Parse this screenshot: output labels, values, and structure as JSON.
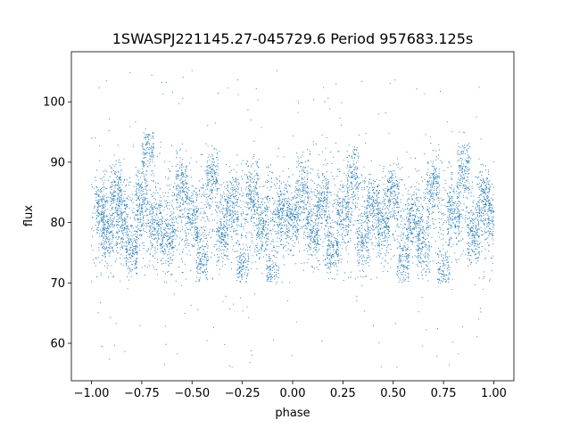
{
  "chart_data": {
    "type": "scatter",
    "title": "1SWASPJ221145.27-045729.6 Period 957683.125s",
    "xlabel": "phase",
    "ylabel": "flux",
    "xlim": [
      -1.1,
      1.1
    ],
    "ylim": [
      53.8,
      108.3
    ],
    "xticks": [
      -1.0,
      -0.75,
      -0.5,
      -0.25,
      0.0,
      0.25,
      0.5,
      0.75,
      1.0
    ],
    "xtick_labels": [
      "−1.00",
      "−0.75",
      "−0.50",
      "−0.25",
      "0.00",
      "0.25",
      "0.50",
      "0.75",
      "1.00"
    ],
    "yticks": [
      60,
      70,
      80,
      90,
      100
    ],
    "ytick_labels": [
      "60",
      "70",
      "80",
      "90",
      "100"
    ],
    "grid": false,
    "marker_color": "#1f77b4",
    "series": [
      {
        "phase_range": [
          -1.0,
          1.0
        ],
        "flux_core_range": [
          70,
          95
        ],
        "flux_outlier_range": [
          56,
          105.5
        ],
        "points": [
          [
            -0.95,
            82
          ],
          [
            -0.92,
            78
          ],
          [
            -0.88,
            85
          ],
          [
            -0.85,
            80
          ],
          [
            -0.8,
            75
          ],
          [
            -0.75,
            84
          ],
          [
            -0.72,
            92
          ],
          [
            -0.68,
            79
          ],
          [
            -0.62,
            77
          ],
          [
            -0.55,
            86
          ],
          [
            -0.5,
            81
          ],
          [
            -0.45,
            74
          ],
          [
            -0.4,
            88
          ],
          [
            -0.35,
            78
          ],
          [
            -0.3,
            83
          ],
          [
            -0.25,
            72
          ],
          [
            -0.2,
            85
          ],
          [
            -0.15,
            79
          ],
          [
            -0.1,
            71
          ],
          [
            -0.05,
            82
          ],
          [
            0.0,
            80
          ],
          [
            0.05,
            86
          ],
          [
            0.1,
            78
          ],
          [
            0.15,
            84
          ],
          [
            0.2,
            75
          ],
          [
            0.25,
            81
          ],
          [
            0.3,
            88
          ],
          [
            0.35,
            77
          ],
          [
            0.4,
            83
          ],
          [
            0.45,
            79
          ],
          [
            0.5,
            85
          ],
          [
            0.55,
            74
          ],
          [
            0.6,
            80
          ],
          [
            0.65,
            76
          ],
          [
            0.7,
            86
          ],
          [
            0.75,
            71
          ],
          [
            0.8,
            82
          ],
          [
            0.85,
            89
          ],
          [
            0.9,
            78
          ],
          [
            0.95,
            84
          ],
          [
            1.0,
            81
          ]
        ]
      }
    ]
  }
}
